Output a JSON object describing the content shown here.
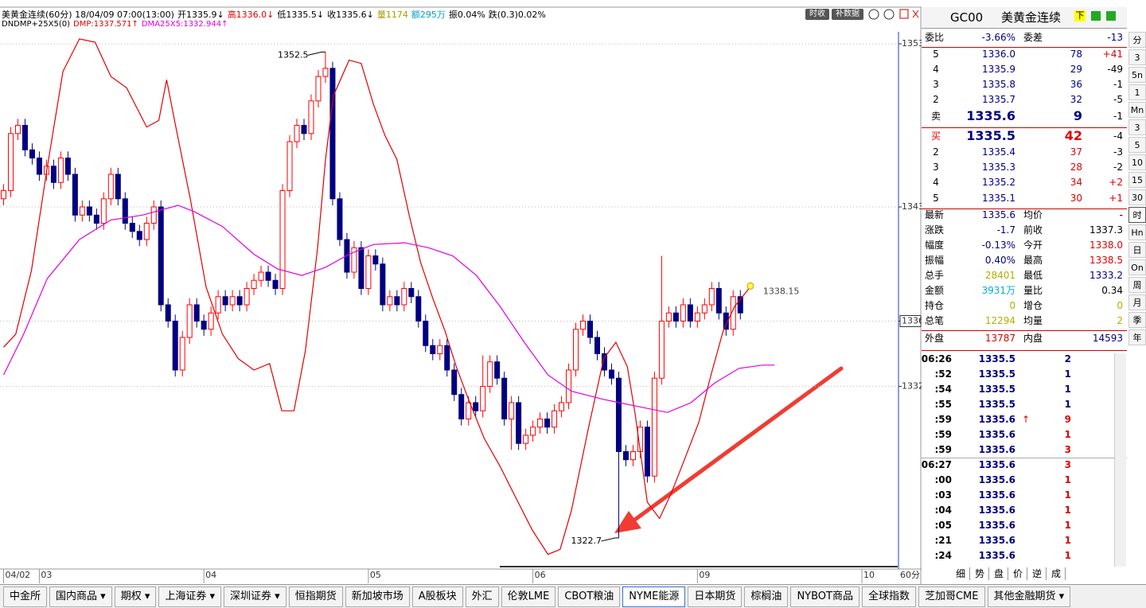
{
  "header": {
    "segments": [
      {
        "text": "美黄金连续(60分) 18/04/09 07:00(13:00)",
        "color": "#000000"
      },
      {
        "text": "开1335.9↓",
        "color": "#000000"
      },
      {
        "text": "高1336.0↓",
        "color": "#e00000"
      },
      {
        "text": "低1335.5↓",
        "color": "#000000"
      },
      {
        "text": "收1335.6↓",
        "color": "#000000"
      },
      {
        "text": "量1174",
        "color": "#a0a000"
      },
      {
        "text": "额295万",
        "color": "#00a0c0"
      },
      {
        "text": "振0.04%",
        "color": "#000000"
      },
      {
        "text": "跌(0.3)0.02%",
        "color": "#000000"
      }
    ],
    "indicator": "DNDMP+25X5(0)",
    "buttons": [
      "时收",
      "补数据"
    ]
  },
  "chart_data": {
    "type": "candlestick",
    "up_color": "#ff0000",
    "down_color": "#000080",
    "ohlc": [
      [
        1343.5,
        1344.4,
        1343.1,
        1344.0
      ],
      [
        1344.0,
        1347.9,
        1343.6,
        1347.5
      ],
      [
        1347.5,
        1348.4,
        1347.1,
        1348.0
      ],
      [
        1348.0,
        1348.4,
        1346.1,
        1346.5
      ],
      [
        1346.5,
        1346.9,
        1345.6,
        1346.0
      ],
      [
        1346.0,
        1346.4,
        1344.6,
        1345.0
      ],
      [
        1345.0,
        1345.9,
        1344.6,
        1345.5
      ],
      [
        1345.5,
        1345.9,
        1344.1,
        1344.5
      ],
      [
        1344.5,
        1346.4,
        1344.1,
        1346.0
      ],
      [
        1346.0,
        1346.4,
        1344.6,
        1345.0
      ],
      [
        1345.0,
        1345.4,
        1342.1,
        1342.5
      ],
      [
        1342.5,
        1343.4,
        1342.1,
        1343.0
      ],
      [
        1343.0,
        1343.4,
        1342.1,
        1342.5
      ],
      [
        1342.5,
        1342.9,
        1341.6,
        1342.0
      ],
      [
        1342.0,
        1343.9,
        1341.6,
        1343.5
      ],
      [
        1343.5,
        1345.4,
        1343.1,
        1345.0
      ],
      [
        1345.0,
        1345.4,
        1343.1,
        1343.5
      ],
      [
        1343.5,
        1343.9,
        1341.6,
        1342.0
      ],
      [
        1342.0,
        1342.4,
        1341.1,
        1341.5
      ],
      [
        1341.5,
        1341.9,
        1340.6,
        1341.0
      ],
      [
        1341.0,
        1342.4,
        1340.6,
        1342.0
      ],
      [
        1342.0,
        1343.4,
        1341.6,
        1343.0
      ],
      [
        1343.0,
        1343.4,
        1336.6,
        1337.0
      ],
      [
        1337.0,
        1337.4,
        1335.6,
        1336.0
      ],
      [
        1336.0,
        1336.4,
        1332.6,
        1333.0
      ],
      [
        1333.0,
        1335.4,
        1332.6,
        1335.0
      ],
      [
        1335.0,
        1337.4,
        1334.6,
        1337.0
      ],
      [
        1337.0,
        1337.4,
        1335.6,
        1336.0
      ],
      [
        1336.0,
        1336.4,
        1335.1,
        1335.5
      ],
      [
        1335.5,
        1336.9,
        1335.1,
        1336.5
      ],
      [
        1336.5,
        1337.9,
        1336.1,
        1337.5
      ],
      [
        1337.5,
        1337.9,
        1336.6,
        1337.0
      ],
      [
        1337.0,
        1337.9,
        1336.6,
        1337.5
      ],
      [
        1337.5,
        1337.9,
        1336.6,
        1337.0
      ],
      [
        1337.0,
        1338.4,
        1336.6,
        1338.0
      ],
      [
        1338.0,
        1338.9,
        1337.6,
        1338.5
      ],
      [
        1338.5,
        1339.4,
        1338.1,
        1339.0
      ],
      [
        1339.0,
        1339.4,
        1338.1,
        1338.5
      ],
      [
        1338.5,
        1338.9,
        1337.6,
        1338.0
      ],
      [
        1338.0,
        1344.4,
        1337.6,
        1344.0
      ],
      [
        1344.0,
        1347.4,
        1343.6,
        1347.0
      ],
      [
        1347.0,
        1348.4,
        1346.6,
        1348.0
      ],
      [
        1348.0,
        1348.4,
        1347.1,
        1347.5
      ],
      [
        1347.5,
        1349.9,
        1347.1,
        1349.5
      ],
      [
        1349.5,
        1351.4,
        1349.1,
        1351.0
      ],
      [
        1351.0,
        1352.5,
        1350.6,
        1351.5
      ],
      [
        1351.5,
        1351.9,
        1343.1,
        1343.5
      ],
      [
        1343.5,
        1343.9,
        1340.6,
        1341.0
      ],
      [
        1341.0,
        1341.4,
        1338.6,
        1339.0
      ],
      [
        1339.0,
        1340.9,
        1338.6,
        1340.5
      ],
      [
        1340.5,
        1340.9,
        1337.6,
        1338.0
      ],
      [
        1338.0,
        1340.4,
        1337.6,
        1340.0
      ],
      [
        1340.0,
        1340.4,
        1339.1,
        1339.5
      ],
      [
        1339.5,
        1339.9,
        1336.6,
        1337.0
      ],
      [
        1337.0,
        1337.9,
        1336.6,
        1337.5
      ],
      [
        1337.5,
        1337.9,
        1336.6,
        1337.0
      ],
      [
        1337.0,
        1338.4,
        1336.6,
        1338.0
      ],
      [
        1338.0,
        1338.4,
        1337.1,
        1337.5
      ],
      [
        1337.5,
        1337.9,
        1335.6,
        1336.0
      ],
      [
        1336.0,
        1336.4,
        1334.1,
        1334.5
      ],
      [
        1334.5,
        1334.9,
        1333.6,
        1334.0
      ],
      [
        1334.0,
        1334.9,
        1333.6,
        1334.5
      ],
      [
        1334.5,
        1334.9,
        1332.6,
        1333.0
      ],
      [
        1333.0,
        1333.4,
        1331.1,
        1331.5
      ],
      [
        1331.5,
        1331.9,
        1329.6,
        1330.0
      ],
      [
        1330.0,
        1331.4,
        1329.6,
        1331.0
      ],
      [
        1331.0,
        1331.4,
        1330.1,
        1330.5
      ],
      [
        1330.5,
        1333.9,
        1330.1,
        1332.0
      ],
      [
        1332.0,
        1333.9,
        1331.6,
        1333.5
      ],
      [
        1333.5,
        1333.9,
        1332.1,
        1332.5
      ],
      [
        1332.5,
        1332.9,
        1329.6,
        1330.0
      ],
      [
        1330.0,
        1331.4,
        1328.1,
        1331.0
      ],
      [
        1331.0,
        1331.4,
        1328.1,
        1328.5
      ],
      [
        1328.5,
        1329.4,
        1328.1,
        1329.0
      ],
      [
        1329.0,
        1329.9,
        1328.6,
        1329.5
      ],
      [
        1329.5,
        1330.4,
        1329.1,
        1330.0
      ],
      [
        1330.0,
        1330.4,
        1329.1,
        1329.5
      ],
      [
        1329.5,
        1330.9,
        1329.1,
        1330.5
      ],
      [
        1330.5,
        1331.4,
        1330.1,
        1331.0
      ],
      [
        1331.0,
        1333.4,
        1330.6,
        1333.0
      ],
      [
        1333.0,
        1335.9,
        1332.6,
        1335.5
      ],
      [
        1335.5,
        1336.4,
        1335.1,
        1336.0
      ],
      [
        1336.0,
        1336.4,
        1334.6,
        1335.0
      ],
      [
        1335.0,
        1335.4,
        1333.6,
        1334.0
      ],
      [
        1334.0,
        1334.4,
        1332.6,
        1333.0
      ],
      [
        1333.0,
        1333.4,
        1332.1,
        1332.5
      ],
      [
        1332.5,
        1332.9,
        1322.7,
        1328.0
      ],
      [
        1328.0,
        1328.4,
        1327.1,
        1327.5
      ],
      [
        1327.5,
        1328.4,
        1327.1,
        1328.0
      ],
      [
        1328.0,
        1329.9,
        1327.6,
        1329.5
      ],
      [
        1329.5,
        1329.9,
        1326.1,
        1326.5
      ],
      [
        1326.5,
        1332.9,
        1326.1,
        1332.5
      ],
      [
        1332.5,
        1340.0,
        1332.1,
        1336.0
      ],
      [
        1336.0,
        1336.9,
        1335.6,
        1336.5
      ],
      [
        1336.5,
        1336.9,
        1335.6,
        1336.0
      ],
      [
        1336.0,
        1337.4,
        1335.6,
        1337.0
      ],
      [
        1337.0,
        1337.4,
        1335.6,
        1336.0
      ],
      [
        1336.0,
        1336.9,
        1335.6,
        1336.5
      ],
      [
        1336.5,
        1337.4,
        1336.1,
        1337.0
      ],
      [
        1337.0,
        1338.4,
        1336.6,
        1338.0
      ],
      [
        1338.0,
        1338.4,
        1336.1,
        1336.5
      ],
      [
        1336.5,
        1336.9,
        1335.1,
        1335.5
      ],
      [
        1335.5,
        1337.9,
        1335.1,
        1337.5
      ],
      [
        1337.5,
        1337.9,
        1336.1,
        1336.5
      ]
    ],
    "ylim": [
      1320.8,
      1355.2
    ],
    "yticks": [
      1353,
      1343,
      1336,
      1332
    ],
    "highlight_tick_index": 2,
    "grid": true,
    "xlim": [
      -0.5,
      125
    ],
    "x_labels": [
      {
        "x": 0,
        "label": "04/02"
      },
      {
        "x": 5,
        "label": "03"
      },
      {
        "x": 28,
        "label": "04"
      },
      {
        "x": 51,
        "label": "05"
      },
      {
        "x": 74,
        "label": "06"
      },
      {
        "x": 97,
        "label": "09"
      },
      {
        "x": 120,
        "label": "10"
      }
    ],
    "period_label": "60分",
    "series": [
      {
        "name": "DMP:1337.571↑",
        "color": "#e00000",
        "x": [
          0,
          1.7,
          3.9,
          6.1,
          8.3,
          10.6,
          12.8,
          15,
          17.2,
          20,
          21.7,
          22.8,
          23.9,
          26.1,
          28.3,
          30.6,
          32.8,
          35,
          37.2,
          38.9,
          40.6,
          42.2,
          43.9,
          45,
          46.1,
          48.3,
          50,
          51.7,
          53.3,
          55,
          56.7,
          58.3,
          60,
          61.7,
          63.3,
          65,
          67.2,
          69.4,
          71.7,
          73.9,
          76.1,
          77.8,
          79.4,
          81.7,
          83.9,
          85.6,
          87.2,
          88.3,
          90,
          91.7,
          93.3,
          95,
          97.2,
          98.9,
          100.6,
          102.2,
          104.4
        ],
        "values": [
          1334.4,
          1335.2,
          1339.1,
          1345.4,
          1351.3,
          1353.3,
          1353.1,
          1351.0,
          1350.3,
          1347.9,
          1348.3,
          1350.8,
          1348.3,
          1343.5,
          1338.1,
          1335.2,
          1333.7,
          1333.0,
          1333.4,
          1330.5,
          1330.5,
          1334.2,
          1340.5,
          1345.9,
          1349.8,
          1352.0,
          1351.8,
          1349.3,
          1347.4,
          1345.9,
          1342.5,
          1339.6,
          1337.4,
          1335.4,
          1333.2,
          1331.2,
          1328.8,
          1327.1,
          1325.1,
          1323.2,
          1321.7,
          1322.0,
          1324.4,
          1329.3,
          1333.7,
          1334.7,
          1333.2,
          1330.3,
          1324.9,
          1323.9,
          1325.4,
          1327.3,
          1329.8,
          1332.7,
          1335.4,
          1336.9,
          1338.1
        ]
      },
      {
        "name": "DMA25X5:1332.944↑",
        "color": "#e000e0",
        "x": [
          0,
          2.8,
          6.1,
          10.6,
          15,
          19.4,
          24.4,
          26.7,
          30.6,
          35,
          38.3,
          41.7,
          45,
          48.3,
          51.7,
          56.1,
          59.4,
          62.8,
          66.1,
          69.4,
          72.8,
          76.1,
          79.4,
          83.9,
          88.3,
          92.8,
          96.1,
          99.4,
          102.8,
          106.1,
          107.8
        ],
        "values": [
          1332.7,
          1335.2,
          1338.6,
          1341.0,
          1342.2,
          1342.5,
          1343.1,
          1342.7,
          1341.8,
          1340.1,
          1339.2,
          1338.8,
          1339.3,
          1340.1,
          1340.7,
          1340.8,
          1340.5,
          1340.0,
          1338.8,
          1336.9,
          1334.7,
          1332.7,
          1331.7,
          1331.2,
          1330.8,
          1330.4,
          1331.0,
          1332.2,
          1333.1,
          1333.3,
          1333.3
        ]
      }
    ],
    "annotations": [
      {
        "label": "1352.5",
        "x": 45,
        "value": 1352.5
      },
      {
        "label": "1322.7",
        "x": 86,
        "value": 1322.7
      },
      {
        "label": "1338.15",
        "x": 104.4,
        "value": 1338.15
      }
    ]
  },
  "quote": {
    "code": "GC00",
    "name": "美黄金连续",
    "icon": "下",
    "ratio": [
      {
        "label": "委比",
        "value": "-3.66%"
      },
      {
        "label": "委差",
        "value": "-13"
      }
    ],
    "asks": [
      {
        "level": "5",
        "price": "1336.0",
        "vol": "78",
        "chg": "+41"
      },
      {
        "level": "4",
        "price": "1335.9",
        "vol": "29",
        "chg": "-49"
      },
      {
        "level": "3",
        "price": "1335.8",
        "vol": "36",
        "chg": "-1"
      },
      {
        "level": "2",
        "price": "1335.7",
        "vol": "32",
        "chg": "-5"
      },
      {
        "level": "卖",
        "price": "1335.6",
        "vol": "9",
        "chg": "-1"
      }
    ],
    "bids": [
      {
        "level": "买",
        "price": "1335.5",
        "vol": "42",
        "chg": "-4"
      },
      {
        "level": "2",
        "price": "1335.4",
        "vol": "37",
        "chg": "-3"
      },
      {
        "level": "3",
        "price": "1335.3",
        "vol": "28",
        "chg": "-2"
      },
      {
        "level": "4",
        "price": "1335.2",
        "vol": "34",
        "chg": "+2"
      },
      {
        "level": "5",
        "price": "1335.1",
        "vol": "30",
        "chg": "+1"
      }
    ],
    "stats": [
      {
        "l1": "最新",
        "v1": "1335.6",
        "c1": "#000080",
        "l2": "均价",
        "v2": "-",
        "c2": "#000000"
      },
      {
        "l1": "涨跌",
        "v1": "-1.7",
        "c1": "#000080",
        "l2": "前收",
        "v2": "1337.3",
        "c2": "#000000"
      },
      {
        "l1": "幅度",
        "v1": "-0.13%",
        "c1": "#000080",
        "l2": "今开",
        "v2": "1338.0",
        "c2": "#e00000"
      },
      {
        "l1": "振幅",
        "v1": "0.40%",
        "c1": "#000080",
        "l2": "最高",
        "v2": "1338.5",
        "c2": "#e00000"
      },
      {
        "l1": "总手",
        "v1": "28401",
        "c1": "#b0b000",
        "l2": "最低",
        "v2": "1333.2",
        "c2": "#000080"
      },
      {
        "l1": "金额",
        "v1": "3931万",
        "c1": "#00b0d0",
        "l2": "量比",
        "v2": "0.34",
        "c2": "#000000"
      },
      {
        "l1": "持仓",
        "v1": "0",
        "c1": "#b0b000",
        "l2": "增仓",
        "v2": "0",
        "c2": "#b0b000"
      },
      {
        "l1": "总笔",
        "v1": "12294",
        "c1": "#b0b000",
        "l2": "均量",
        "v2": "2",
        "c2": "#b0b000"
      },
      {
        "l1": "外盘",
        "v1": "13787",
        "c1": "#e00000",
        "l2": "内盘",
        "v2": "14593",
        "c2": "#000080"
      }
    ],
    "ticks": [
      {
        "time": "06:26",
        "price": "1335.5",
        "vol": "2",
        "color": "#000080"
      },
      {
        "time": ":52",
        "price": "1335.5",
        "vol": "1",
        "color": "#000080"
      },
      {
        "time": ":54",
        "price": "1335.5",
        "vol": "1",
        "color": "#000080"
      },
      {
        "time": ":55",
        "price": "1335.5",
        "vol": "1",
        "color": "#000080"
      },
      {
        "time": ":59",
        "price": "1335.6",
        "arrow": "↑",
        "vol": "9",
        "color": "#e00000"
      },
      {
        "time": ":59",
        "price": "1335.6",
        "vol": "1",
        "color": "#e00000"
      },
      {
        "time": ":59",
        "price": "1335.6",
        "vol": "3",
        "color": "#e00000"
      },
      {
        "time": "06:27",
        "price": "1335.6",
        "vol": "3",
        "color": "#e00000"
      },
      {
        "time": ":00",
        "price": "1335.6",
        "vol": "1",
        "color": "#e00000"
      },
      {
        "time": ":03",
        "price": "1335.6",
        "vol": "1",
        "color": "#e00000"
      },
      {
        "time": ":04",
        "price": "1335.6",
        "vol": "1",
        "color": "#e00000"
      },
      {
        "time": ":05",
        "price": "1335.6",
        "vol": "1",
        "color": "#e00000"
      },
      {
        "time": ":21",
        "price": "1335.6",
        "vol": "1",
        "color": "#e00000"
      },
      {
        "time": ":24",
        "price": "1335.6",
        "vol": "1",
        "color": "#e00000"
      }
    ],
    "tabs": [
      "细",
      "势",
      "盘",
      "价",
      "逆",
      "成"
    ]
  },
  "side_buttons": [
    "分",
    "3",
    "5n",
    "1",
    "Mn",
    "3",
    "5",
    "10",
    "15",
    "30",
    "时",
    "Hn",
    "日",
    "On",
    "周",
    "月",
    "季",
    "年"
  ],
  "side_selected_index": 10,
  "tabs": [
    "中金所",
    "国内商品 ▾",
    "期权 ▾",
    "上海证券 ▾",
    "深圳证券 ▾",
    "恒指期货",
    "新加坡市场",
    "A股板块",
    "外汇",
    "伦敦LME",
    "CBOT粮油",
    "NYME能源",
    "日本期货",
    "棕榈油",
    "NYBOT商品",
    "全球指数",
    "芝加哥CME",
    "其他金融期货 ▾"
  ],
  "selected_tab_index": 11
}
